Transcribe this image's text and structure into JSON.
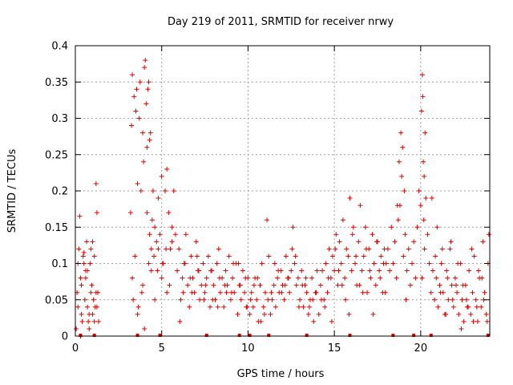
{
  "chart_data": {
    "type": "scatter",
    "title": "Day 219 of 2011, SRMTID for receiver nrwy",
    "xlabel": "GPS time / hours",
    "ylabel": "SRMTID / TECUs",
    "xlim": [
      0,
      24
    ],
    "ylim": [
      0,
      0.4
    ],
    "x_ticks": [
      0,
      5,
      10,
      15,
      20
    ],
    "y_ticks": [
      0,
      0.05,
      0.1,
      0.15,
      0.2,
      0.25,
      0.3,
      0.35,
      0.4
    ],
    "x_tick_labels": [
      "0",
      "5",
      "10",
      "15",
      "20"
    ],
    "y_tick_labels": [
      "0",
      "0.05",
      "0.1",
      "0.15",
      "0.2",
      "0.25",
      "0.3",
      "0.35",
      "0.4"
    ],
    "grid": true,
    "marker": "+",
    "series": [
      {
        "name": "SRMTID",
        "color": "#e00000",
        "x": [
          0.05,
          0.1,
          0.15,
          0.2,
          0.25,
          0.3,
          0.35,
          0.4,
          0.45,
          0.5,
          0.55,
          0.6,
          0.65,
          0.7,
          0.75,
          0.8,
          0.85,
          0.9,
          0.95,
          1.0,
          1.05,
          1.1,
          1.15,
          1.2,
          1.25,
          1.3,
          1.35,
          0.15,
          0.35,
          0.5,
          0.7,
          0.9,
          1.1,
          1.25,
          0.3,
          0.6,
          0.8,
          1.0,
          1.2,
          3.2,
          3.25,
          3.3,
          3.4,
          3.5,
          3.55,
          3.6,
          3.7,
          3.75,
          3.8,
          3.9,
          3.95,
          4.0,
          4.05,
          4.1,
          4.15,
          4.2,
          4.25,
          4.3,
          4.35,
          4.4,
          4.45,
          4.5,
          4.6,
          4.7,
          4.8,
          4.9,
          5.0,
          5.1,
          5.2,
          5.3,
          5.4,
          5.5,
          5.6,
          5.7,
          5.8,
          3.3,
          3.45,
          3.6,
          3.85,
          4.0,
          4.25,
          4.4,
          4.6,
          4.8,
          5.0,
          5.3,
          5.6,
          3.35,
          3.65,
          3.9,
          4.15,
          4.3,
          4.55,
          4.75,
          5.05,
          5.25,
          5.45,
          5.9,
          6.0,
          6.1,
          6.2,
          6.3,
          6.4,
          6.5,
          6.6,
          6.7,
          6.8,
          6.9,
          7.0,
          7.1,
          7.2,
          7.3,
          7.4,
          7.5,
          7.6,
          7.7,
          7.8,
          7.9,
          8.0,
          8.1,
          8.2,
          8.3,
          8.4,
          8.5,
          8.6,
          8.7,
          8.8,
          8.9,
          9.0,
          9.1,
          9.2,
          9.3,
          9.4,
          9.5,
          9.6,
          9.7,
          9.8,
          9.9,
          10.0,
          6.05,
          6.35,
          6.75,
          7.15,
          7.55,
          7.95,
          8.35,
          8.75,
          9.15,
          9.55,
          9.95,
          6.25,
          6.65,
          7.05,
          7.45,
          7.85,
          8.25,
          8.65,
          9.05,
          9.45,
          9.85,
          10.1,
          10.2,
          10.3,
          10.4,
          10.5,
          10.6,
          10.7,
          10.8,
          10.9,
          11.0,
          11.1,
          11.2,
          11.3,
          11.4,
          11.5,
          11.6,
          11.7,
          11.8,
          11.9,
          12.0,
          12.1,
          12.2,
          12.3,
          12.4,
          12.5,
          12.6,
          12.7,
          12.8,
          12.9,
          13.0,
          13.1,
          13.2,
          13.3,
          13.4,
          13.5,
          13.6,
          13.7,
          13.8,
          13.9,
          14.0,
          10.15,
          10.55,
          10.95,
          11.35,
          11.75,
          12.15,
          12.55,
          12.95,
          13.35,
          13.75,
          10.35,
          10.75,
          11.15,
          11.55,
          11.95,
          12.35,
          12.75,
          13.15,
          13.55,
          13.95,
          14.1,
          14.2,
          14.3,
          14.4,
          14.5,
          14.6,
          14.7,
          14.8,
          14.9,
          15.0,
          15.1,
          15.2,
          15.3,
          15.4,
          15.5,
          15.6,
          15.7,
          15.8,
          15.9,
          16.0,
          16.1,
          16.2,
          16.3,
          16.4,
          16.5,
          16.6,
          16.7,
          16.8,
          16.9,
          17.0,
          17.1,
          17.2,
          17.3,
          17.4,
          17.5,
          17.6,
          17.7,
          17.8,
          17.9,
          18.0,
          14.25,
          14.65,
          15.05,
          15.45,
          15.85,
          16.25,
          16.65,
          17.05,
          17.45,
          17.85,
          14.45,
          14.85,
          15.25,
          15.65,
          16.05,
          16.45,
          16.85,
          17.25,
          17.65,
          17.95,
          18.1,
          18.2,
          18.3,
          18.4,
          18.5,
          18.6,
          18.7,
          18.8,
          18.9,
          19.0,
          19.1,
          19.2,
          19.3,
          19.4,
          19.5,
          19.6,
          19.7,
          19.8,
          19.9,
          20.0,
          20.05,
          20.1,
          20.15,
          20.2,
          20.25,
          20.3,
          20.4,
          20.5,
          18.75,
          18.85,
          18.95,
          19.05,
          18.65,
          19.15,
          20.12,
          20.18,
          20.22,
          20.08,
          20.6,
          20.7,
          20.8,
          20.9,
          21.0,
          21.1,
          21.2,
          21.3,
          21.4,
          21.5,
          21.6,
          21.7,
          21.8,
          21.9,
          22.0,
          22.1,
          22.2,
          22.3,
          22.4,
          22.5,
          22.6,
          22.7,
          22.8,
          22.9,
          23.0,
          23.1,
          23.2,
          23.3,
          23.4,
          23.5,
          23.6,
          23.7,
          23.8,
          23.9,
          20.65,
          20.95,
          21.25,
          21.55,
          21.85,
          22.15,
          22.45,
          22.75,
          23.05,
          23.35,
          23.65,
          23.95,
          20.85,
          21.15,
          21.45,
          21.75,
          22.05,
          22.35,
          22.65,
          22.95,
          23.25,
          23.55,
          23.85
        ],
        "y": [
          0.01,
          0.06,
          0.1,
          0.12,
          0.165,
          0.08,
          0.03,
          0.02,
          0.11,
          0.1,
          0.05,
          0.09,
          0.13,
          0.04,
          0.02,
          0.01,
          0.1,
          0.12,
          0.07,
          0.03,
          0.05,
          0.02,
          0.04,
          0.21,
          0.17,
          0.06,
          0.02,
          0.04,
          0.07,
          0.115,
          0.09,
          0.06,
          0.11,
          0.04,
          0.0,
          0.08,
          0.03,
          0.13,
          0.06,
          0.17,
          0.29,
          0.36,
          0.33,
          0.31,
          0.34,
          0.21,
          0.3,
          0.35,
          0.2,
          0.28,
          0.24,
          0.37,
          0.38,
          0.32,
          0.26,
          0.34,
          0.35,
          0.27,
          0.28,
          0.12,
          0.16,
          0.2,
          0.15,
          0.13,
          0.19,
          0.14,
          0.22,
          0.1,
          0.2,
          0.23,
          0.17,
          0.12,
          0.15,
          0.2,
          0.14,
          0.08,
          0.11,
          0.03,
          0.06,
          0.01,
          0.1,
          0.09,
          0.05,
          0.12,
          0.08,
          0.06,
          0.13,
          0.05,
          0.04,
          0.07,
          0.17,
          0.14,
          0.11,
          0.09,
          0.1,
          0.12,
          0.07,
          0.09,
          0.12,
          0.05,
          0.08,
          0.1,
          0.14,
          0.07,
          0.04,
          0.11,
          0.08,
          0.06,
          0.13,
          0.09,
          0.05,
          0.07,
          0.1,
          0.06,
          0.08,
          0.11,
          0.04,
          0.09,
          0.07,
          0.05,
          0.1,
          0.12,
          0.06,
          0.08,
          0.04,
          0.09,
          0.07,
          0.11,
          0.05,
          0.08,
          0.06,
          0.1,
          0.03,
          0.07,
          0.05,
          0.09,
          0.06,
          0.04,
          0.08,
          0.02,
          0.1,
          0.06,
          0.09,
          0.07,
          0.05,
          0.08,
          0.06,
          0.1,
          0.07,
          0.04,
          0.06,
          0.08,
          0.11,
          0.05,
          0.09,
          0.04,
          0.07,
          0.06,
          0.1,
          0.08,
          0.03,
          0.06,
          0.04,
          0.08,
          0.05,
          0.02,
          0.07,
          0.1,
          0.04,
          0.06,
          0.16,
          0.11,
          0.03,
          0.05,
          0.07,
          0.04,
          0.08,
          0.06,
          0.09,
          0.07,
          0.05,
          0.11,
          0.08,
          0.06,
          0.09,
          0.15,
          0.1,
          0.07,
          0.08,
          0.05,
          0.09,
          0.04,
          0.07,
          0.06,
          0.03,
          0.05,
          0.08,
          0.02,
          0.06,
          0.09,
          0.05,
          0.08,
          0.03,
          0.06,
          0.09,
          0.07,
          0.12,
          0.04,
          0.08,
          0.05,
          0.07,
          0.02,
          0.05,
          0.1,
          0.06,
          0.08,
          0.11,
          0.07,
          0.04,
          0.06,
          0.03,
          0.07,
          0.09,
          0.05,
          0.1,
          0.06,
          0.12,
          0.08,
          0.11,
          0.09,
          0.14,
          0.07,
          0.13,
          0.1,
          0.16,
          0.08,
          0.12,
          0.11,
          0.19,
          0.09,
          0.15,
          0.1,
          0.07,
          0.13,
          0.18,
          0.09,
          0.11,
          0.15,
          0.06,
          0.12,
          0.08,
          0.14,
          0.1,
          0.07,
          0.13,
          0.09,
          0.11,
          0.06,
          0.12,
          0.1,
          0.05,
          0.08,
          0.12,
          0.07,
          0.03,
          0.11,
          0.06,
          0.09,
          0.13,
          0.1,
          0.04,
          0.02,
          0.09,
          0.05,
          0.14,
          0.07,
          0.12,
          0.03,
          0.08,
          0.06,
          0.12,
          0.09,
          0.15,
          0.1,
          0.13,
          0.08,
          0.16,
          0.18,
          0.22,
          0.11,
          0.14,
          0.09,
          0.12,
          0.07,
          0.1,
          0.13,
          0.08,
          0.15,
          0.2,
          0.18,
          0.31,
          0.36,
          0.24,
          0.22,
          0.28,
          0.19,
          0.14,
          0.1,
          0.24,
          0.28,
          0.26,
          0.2,
          0.18,
          0.05,
          0.33,
          0.16,
          0.12,
          0.08,
          0.06,
          0.09,
          0.05,
          0.08,
          0.04,
          0.07,
          0.1,
          0.06,
          0.03,
          0.09,
          0.05,
          0.12,
          0.07,
          0.04,
          0.08,
          0.06,
          0.03,
          0.1,
          0.05,
          0.02,
          0.07,
          0.04,
          0.09,
          0.03,
          0.06,
          0.11,
          0.05,
          0.02,
          0.08,
          0.04,
          0.13,
          0.06,
          0.03,
          0.1,
          0.19,
          0.15,
          0.12,
          0.08,
          0.05,
          0.1,
          0.07,
          0.04,
          0.02,
          0.09,
          0.05,
          0.14,
          0.11,
          0.06,
          0.03,
          0.13,
          0.07,
          0.01,
          0.05,
          0.12,
          0.04,
          0.08,
          0.02
        ]
      }
    ],
    "axis_markers_x": [
      0.3,
      1.1,
      3.6,
      4.9,
      7.6,
      9.5,
      10.1,
      11.2,
      13.4,
      15.9,
      18.4,
      19.6,
      20.6,
      23.9
    ]
  }
}
